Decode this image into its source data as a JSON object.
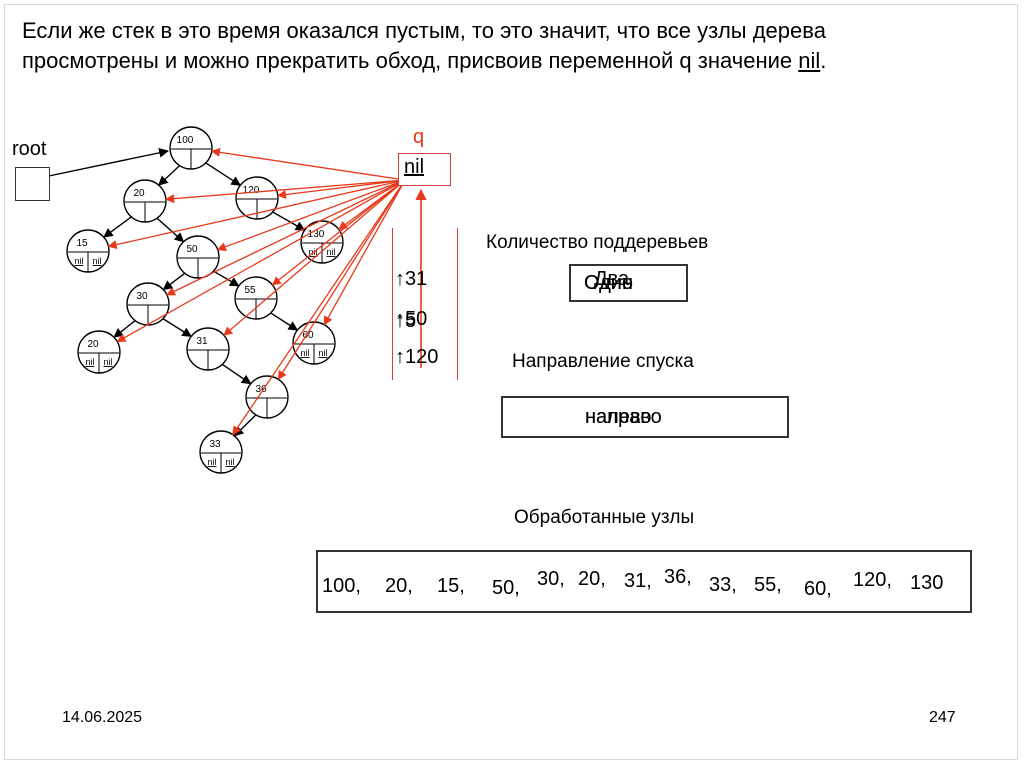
{
  "heading": {
    "line1": "Если же стек в это время оказался пустым, то это значит, что все узлы дерева",
    "line2_prefix": "просмотрены и можно прекратить обход, присвоив переменной q значение ",
    "line2_nil": "nil",
    "line2_suffix": "."
  },
  "root_label": "root",
  "q_label": "q",
  "q_value": "nil",
  "nil_text": "nil",
  "nodes": [
    {
      "id": "n100",
      "value": "100",
      "leaf": false
    },
    {
      "id": "n20a",
      "value": "20",
      "leaf": false
    },
    {
      "id": "n120",
      "value": "120",
      "leaf": false
    },
    {
      "id": "n15",
      "value": "15",
      "leaf": true
    },
    {
      "id": "n50",
      "value": "50",
      "leaf": false
    },
    {
      "id": "n130",
      "value": "130",
      "leaf": true
    },
    {
      "id": "n30",
      "value": "30",
      "leaf": false
    },
    {
      "id": "n55",
      "value": "55",
      "leaf": false
    },
    {
      "id": "n20b",
      "value": "20",
      "leaf": true
    },
    {
      "id": "n31",
      "value": "31",
      "leaf": false
    },
    {
      "id": "n60",
      "value": "60",
      "leaf": true
    },
    {
      "id": "n36",
      "value": "36",
      "leaf": false
    },
    {
      "id": "n33",
      "value": "33",
      "leaf": true
    }
  ],
  "stack": {
    "items": [
      "↑31",
      "↑50",
      "↑120"
    ],
    "overlay": "↑5"
  },
  "subtrees": {
    "label": "Количество поддеревьев",
    "values": [
      "Один",
      "Два",
      "Одно"
    ]
  },
  "direction": {
    "label": "Направление спуска",
    "values": [
      "налево",
      "направо"
    ]
  },
  "processed": {
    "label": "Обработанные узлы",
    "items": [
      "100,",
      "20,",
      "15,",
      "50,",
      "30,",
      "20,",
      "31,",
      "36,",
      "33,",
      "55,",
      "60,",
      "120,",
      "130"
    ]
  },
  "footer": {
    "date": "14.06.2025",
    "page": "247"
  },
  "colors": {
    "arrow_red": "#e8391b",
    "q_red": "#e8391b",
    "border_red": "#d04040",
    "line_black": "#000000"
  }
}
